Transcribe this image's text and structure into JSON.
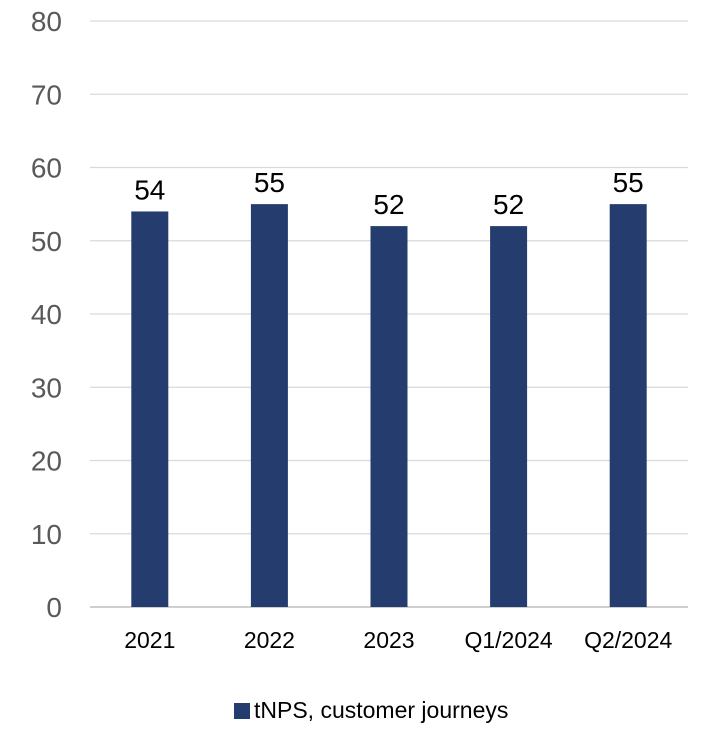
{
  "chart_data": {
    "type": "bar",
    "categories": [
      "2021",
      "2022",
      "2023",
      "Q1/2024",
      "Q2/2024"
    ],
    "series": [
      {
        "name": "tNPS, customer journeys",
        "values": [
          54,
          55,
          52,
          52,
          55
        ],
        "color": "#243C6E"
      }
    ],
    "yticks": [
      "0",
      "10",
      "20",
      "30",
      "40",
      "50",
      "60",
      "70",
      "80"
    ],
    "ylim": [
      0,
      80
    ],
    "grid": true,
    "data_labels": true,
    "legend_position": "bottom"
  }
}
